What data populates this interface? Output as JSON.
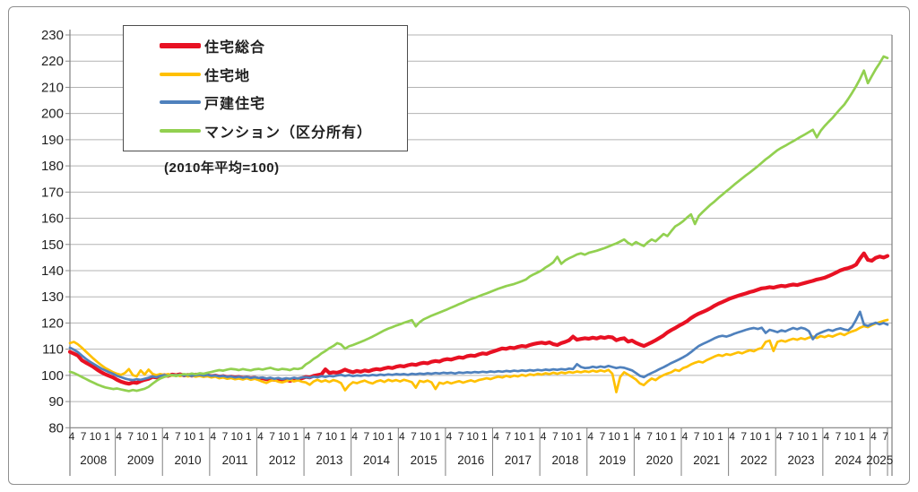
{
  "figure": {
    "base_note": "(2010年平均=100)"
  },
  "axes": {
    "y_tick_labels": [
      "80",
      "90",
      "100",
      "110",
      "120",
      "130",
      "140",
      "150",
      "160",
      "170",
      "180",
      "190",
      "200",
      "210",
      "220",
      "230"
    ],
    "y_min": 80,
    "y_max": 230,
    "month_label_pattern": [
      "4",
      "7",
      "10",
      "1"
    ],
    "year_labels": [
      "2008",
      "2009",
      "2010",
      "2011",
      "2012",
      "2013",
      "2014",
      "2015",
      "2016",
      "2017",
      "2018",
      "2019",
      "2020",
      "2021",
      "2022",
      "2023",
      "2024",
      "2025"
    ]
  },
  "chart_data": {
    "type": "line",
    "title": "",
    "note": "(2010年平均=100)",
    "x_start": "2008-04",
    "x_end": "2025-08",
    "frequency": "monthly",
    "x_axis_grouping": "fiscal-year (April–March), months labeled 4,7,10,1",
    "ylim": [
      80,
      230
    ],
    "grid": true,
    "legend_position": "top-left inside plot",
    "series": [
      {
        "name": "住宅総合",
        "color": "#e81123",
        "width": 4.2,
        "values": [
          109.0,
          108.3,
          107.6,
          105.8,
          104.9,
          104.1,
          103.2,
          102.1,
          101.2,
          100.4,
          99.8,
          99.2,
          98.3,
          97.6,
          97.1,
          96.8,
          97.3,
          97.1,
          97.8,
          98.3,
          98.7,
          99.4,
          99.2,
          99.7,
          100.1,
          99.8,
          100.3,
          100.1,
          100.4,
          100.0,
          100.2,
          99.9,
          100.3,
          100.1,
          99.8,
          100.0,
          99.7,
          99.9,
          99.5,
          99.7,
          99.3,
          99.5,
          99.2,
          99.4,
          99.0,
          99.2,
          98.9,
          99.1,
          98.7,
          98.9,
          98.5,
          98.6,
          98.3,
          98.5,
          98.1,
          98.3,
          97.9,
          98.4,
          98.6,
          98.9,
          99.4,
          99.2,
          99.8,
          100.1,
          100.4,
          102.3,
          100.9,
          101.2,
          101.0,
          101.5,
          102.2,
          101.6,
          101.2,
          101.7,
          101.4,
          101.9,
          101.6,
          102.1,
          102.4,
          102.2,
          102.7,
          103.0,
          102.8,
          103.3,
          103.6,
          103.4,
          103.9,
          104.2,
          104.0,
          104.5,
          104.8,
          104.6,
          105.2,
          105.5,
          105.3,
          105.9,
          106.2,
          106.0,
          106.5,
          106.9,
          106.7,
          107.3,
          107.6,
          107.4,
          108.0,
          108.4,
          108.2,
          108.8,
          109.3,
          109.8,
          110.3,
          110.1,
          110.6,
          110.4,
          110.9,
          111.2,
          111.0,
          111.6,
          112.0,
          112.3,
          112.5,
          112.2,
          112.6,
          111.9,
          111.6,
          112.3,
          112.8,
          113.4,
          114.8,
          113.6,
          113.9,
          114.2,
          114.0,
          114.4,
          114.1,
          114.6,
          114.3,
          114.7,
          114.5,
          113.4,
          113.9,
          114.2,
          112.9,
          113.3,
          112.4,
          111.8,
          111.2,
          111.9,
          112.6,
          113.4,
          114.3,
          115.2,
          116.4,
          117.3,
          118.1,
          119.0,
          119.8,
          120.7,
          121.9,
          122.8,
          123.6,
          124.2,
          124.9,
          125.7,
          126.6,
          127.4,
          128.0,
          128.7,
          129.4,
          129.9,
          130.4,
          130.9,
          131.3,
          131.8,
          132.2,
          132.7,
          133.2,
          133.4,
          133.7,
          133.5,
          133.9,
          134.2,
          134.0,
          134.4,
          134.7,
          134.5,
          134.9,
          135.3,
          135.7,
          136.1,
          136.6,
          136.9,
          137.3,
          137.9,
          138.6,
          139.3,
          140.1,
          140.6,
          141.0,
          141.5,
          142.3,
          144.6,
          146.6,
          144.1,
          143.8,
          144.9,
          145.4,
          145.0,
          145.6
        ]
      },
      {
        "name": "住宅地",
        "color": "#ffc000",
        "width": 2.7,
        "values": [
          112.3,
          112.8,
          111.9,
          110.6,
          109.2,
          107.8,
          106.4,
          105.1,
          103.9,
          102.8,
          102.0,
          101.2,
          100.6,
          100.2,
          100.9,
          102.4,
          100.1,
          99.6,
          101.9,
          100.3,
          102.2,
          100.6,
          100.1,
          100.5,
          100.2,
          100.5,
          99.9,
          100.3,
          99.7,
          100.1,
          99.6,
          99.9,
          99.5,
          99.8,
          99.4,
          99.7,
          99.2,
          99.5,
          98.9,
          99.2,
          98.7,
          99.0,
          98.5,
          98.8,
          98.4,
          98.9,
          98.3,
          98.7,
          98.2,
          97.6,
          97.1,
          97.9,
          98.2,
          97.6,
          97.3,
          97.8,
          98.3,
          97.7,
          98.1,
          97.6,
          97.3,
          96.4,
          97.7,
          98.3,
          97.6,
          98.1,
          97.5,
          98.2,
          97.8,
          97.0,
          94.3,
          96.2,
          97.4,
          97.0,
          97.6,
          98.0,
          97.3,
          96.9,
          97.7,
          98.1,
          97.5,
          98.3,
          97.8,
          98.2,
          97.7,
          98.3,
          97.9,
          97.4,
          95.3,
          97.9,
          97.5,
          98.0,
          97.3,
          94.8,
          97.2,
          96.8,
          97.5,
          96.9,
          97.4,
          97.8,
          97.2,
          97.7,
          98.1,
          97.6,
          98.2,
          98.5,
          98.9,
          98.6,
          99.1,
          99.5,
          99.2,
          99.8,
          99.4,
          99.9,
          99.6,
          100.2,
          99.8,
          100.4,
          100.1,
          100.6,
          100.3,
          100.8,
          100.5,
          101.0,
          100.6,
          101.1,
          100.8,
          101.3,
          101.0,
          101.5,
          101.2,
          101.6,
          101.3,
          101.8,
          101.4,
          101.9,
          101.5,
          102.1,
          100.6,
          93.6,
          99.4,
          101.2,
          100.3,
          99.4,
          98.4,
          96.9,
          96.3,
          97.7,
          98.8,
          98.2,
          99.3,
          100.1,
          100.7,
          101.2,
          102.1,
          101.7,
          102.8,
          103.3,
          104.2,
          104.8,
          105.3,
          104.9,
          105.8,
          106.5,
          107.2,
          107.8,
          107.4,
          108.1,
          107.8,
          108.3,
          108.8,
          108.4,
          109.1,
          109.6,
          109.2,
          110.0,
          110.5,
          112.8,
          113.3,
          109.3,
          112.8,
          113.3,
          112.9,
          113.5,
          114.0,
          113.6,
          114.2,
          113.8,
          114.4,
          114.8,
          114.3,
          115.0,
          114.6,
          115.2,
          114.8,
          115.5,
          116.0,
          115.4,
          116.2,
          116.8,
          117.3,
          118.2,
          118.8,
          118.4,
          119.2,
          119.8,
          120.3,
          120.8,
          121.2
        ]
      },
      {
        "name": "戸建住宅",
        "color": "#4f81bd",
        "width": 2.7,
        "values": [
          110.6,
          109.8,
          108.9,
          107.6,
          106.4,
          105.3,
          104.4,
          103.5,
          102.6,
          101.9,
          101.2,
          100.6,
          99.8,
          99.3,
          98.8,
          98.4,
          98.2,
          98.5,
          98.3,
          98.7,
          99.1,
          99.6,
          99.3,
          99.8,
          100.1,
          99.8,
          100.2,
          100.0,
          100.3,
          99.9,
          100.2,
          99.8,
          100.1,
          100.3,
          99.9,
          100.2,
          99.8,
          100.0,
          99.6,
          99.8,
          99.4,
          99.6,
          99.2,
          99.5,
          99.1,
          99.4,
          99.0,
          99.3,
          99.0,
          99.2,
          98.8,
          99.1,
          98.7,
          99.0,
          98.6,
          98.9,
          98.7,
          99.1,
          98.8,
          99.2,
          99.3,
          99.1,
          99.5,
          99.3,
          99.7,
          99.4,
          99.8,
          99.6,
          100.0,
          100.2,
          99.8,
          100.1,
          99.7,
          100.0,
          99.8,
          100.1,
          99.9,
          100.2,
          100.0,
          100.3,
          100.1,
          100.4,
          100.2,
          100.5,
          100.3,
          100.5,
          100.2,
          100.6,
          100.4,
          100.7,
          100.5,
          100.8,
          100.6,
          100.9,
          100.7,
          101.0,
          100.8,
          101.0,
          100.7,
          101.1,
          100.9,
          101.2,
          101.0,
          101.3,
          101.1,
          101.4,
          101.2,
          101.5,
          101.3,
          101.6,
          101.4,
          101.7,
          101.5,
          101.8,
          101.6,
          101.9,
          101.7,
          102.0,
          101.8,
          102.1,
          101.9,
          102.2,
          102.0,
          102.3,
          102.1,
          102.4,
          102.2,
          102.6,
          102.4,
          104.3,
          103.2,
          102.8,
          102.9,
          103.3,
          103.0,
          103.4,
          103.1,
          103.6,
          103.2,
          102.8,
          103.1,
          102.9,
          102.4,
          101.9,
          100.9,
          99.8,
          99.3,
          100.2,
          100.9,
          101.6,
          102.4,
          103.1,
          103.9,
          104.7,
          105.4,
          106.1,
          106.9,
          107.8,
          108.9,
          110.1,
          111.2,
          112.0,
          112.7,
          113.4,
          114.2,
          114.8,
          115.1,
          114.8,
          115.3,
          115.9,
          116.4,
          116.9,
          117.4,
          117.8,
          118.1,
          117.7,
          118.2,
          116.2,
          117.4,
          117.0,
          116.5,
          117.2,
          116.8,
          117.5,
          118.1,
          117.6,
          118.2,
          117.8,
          116.9,
          113.8,
          115.6,
          116.3,
          116.9,
          117.4,
          117.0,
          117.6,
          118.0,
          117.5,
          117.2,
          118.6,
          121.2,
          124.3,
          119.4,
          118.9,
          119.6,
          120.1,
          119.5,
          120.0,
          119.4
        ]
      },
      {
        "name": "マンション（区分所有）",
        "color": "#92d050",
        "width": 2.7,
        "values": [
          101.4,
          100.9,
          100.2,
          99.4,
          98.7,
          97.9,
          97.2,
          96.5,
          95.9,
          95.4,
          95.1,
          94.8,
          95.0,
          94.6,
          94.3,
          94.0,
          94.4,
          94.1,
          94.5,
          94.9,
          95.6,
          96.8,
          97.9,
          98.8,
          99.4,
          99.8,
          100.1,
          99.7,
          100.2,
          100.5,
          100.3,
          100.7,
          100.4,
          100.8,
          100.6,
          101.0,
          101.3,
          101.7,
          102.0,
          101.8,
          102.2,
          102.5,
          102.3,
          102.0,
          102.4,
          102.1,
          101.9,
          102.3,
          102.5,
          102.2,
          102.6,
          102.9,
          102.4,
          102.1,
          102.5,
          102.3,
          102.0,
          102.6,
          102.4,
          102.8,
          104.2,
          105.1,
          106.3,
          107.2,
          108.4,
          109.3,
          110.4,
          111.2,
          112.3,
          111.8,
          110.2,
          111.1,
          111.6,
          112.2,
          112.8,
          113.4,
          114.1,
          114.8,
          115.6,
          116.4,
          117.2,
          117.9,
          118.4,
          119.0,
          119.5,
          120.1,
          120.6,
          121.1,
          118.7,
          120.3,
          121.4,
          122.1,
          122.8,
          123.4,
          124.0,
          124.6,
          125.2,
          125.9,
          126.5,
          127.2,
          127.8,
          128.5,
          129.1,
          129.6,
          130.2,
          130.8,
          131.3,
          131.9,
          132.5,
          133.1,
          133.6,
          134.1,
          134.5,
          134.9,
          135.4,
          136.0,
          136.6,
          137.8,
          138.6,
          139.3,
          140.1,
          141.2,
          142.1,
          143.2,
          145.3,
          142.6,
          143.9,
          144.7,
          145.4,
          146.2,
          146.6,
          146.1,
          146.8,
          147.2,
          147.6,
          148.1,
          148.6,
          149.2,
          149.8,
          150.4,
          151.1,
          151.9,
          150.6,
          149.8,
          150.9,
          150.1,
          149.4,
          150.8,
          151.9,
          151.2,
          152.6,
          154.0,
          153.2,
          155.1,
          156.9,
          157.8,
          158.9,
          160.3,
          161.5,
          157.8,
          160.9,
          162.4,
          163.8,
          165.2,
          166.4,
          167.8,
          169.0,
          170.3,
          171.5,
          172.8,
          174.0,
          175.2,
          176.4,
          177.5,
          178.7,
          179.9,
          181.2,
          182.5,
          183.6,
          184.8,
          186.0,
          186.9,
          187.7,
          188.6,
          189.4,
          190.3,
          191.2,
          192.0,
          192.9,
          193.8,
          190.9,
          193.4,
          195.2,
          196.8,
          198.3,
          200.1,
          201.8,
          203.4,
          205.6,
          207.9,
          210.4,
          213.2,
          216.4,
          211.6,
          214.3,
          216.9,
          219.2,
          221.8,
          221.2
        ]
      }
    ]
  }
}
